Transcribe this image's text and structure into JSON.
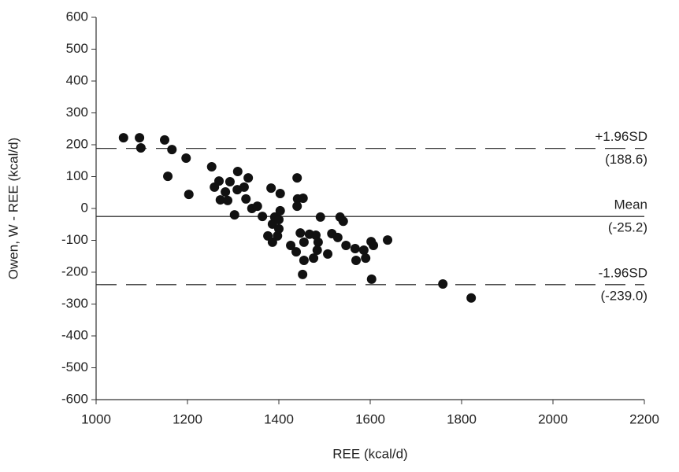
{
  "chart_data": {
    "type": "scatter",
    "x_label": "REE (kcal/d)",
    "y_label": "Owen, W - REE (kcal/d)",
    "xlim": [
      1000,
      2200
    ],
    "xticks": [
      1000,
      1200,
      1400,
      1600,
      1800,
      2000,
      2200
    ],
    "ylim": [
      -600,
      600
    ],
    "yticks": [
      600,
      500,
      400,
      300,
      200,
      100,
      0,
      -100,
      -200,
      -300,
      -400,
      -500,
      -600
    ],
    "series": [
      {
        "color": "#111111",
        "x": [
          1060,
          1095,
          1098,
          1150,
          1166,
          1157,
          1197,
          1203,
          1253,
          1259,
          1269,
          1272,
          1283,
          1288,
          1293,
          1303,
          1310,
          1309,
          1324,
          1328,
          1333,
          1341,
          1353,
          1364,
          1376,
          1383,
          1386,
          1391,
          1397,
          1400,
          1403,
          1403,
          1400,
          1386,
          1426,
          1438,
          1440,
          1441,
          1440,
          1453,
          1447,
          1452,
          1455,
          1455,
          1467,
          1476,
          1481,
          1486,
          1491,
          1484,
          1507,
          1516,
          1529,
          1534,
          1541,
          1547,
          1567,
          1569,
          1586,
          1590,
          1602,
          1603,
          1607,
          1638,
          1759,
          1821
        ],
        "values": [
          222,
          222,
          190,
          215,
          185,
          101,
          158,
          44,
          131,
          67,
          86,
          27,
          52,
          25,
          84,
          -20,
          116,
          59,
          67,
          30,
          96,
          0,
          7,
          -25,
          -86,
          64,
          -49,
          -27,
          -86,
          -64,
          47,
          -7,
          -35,
          -106,
          -116,
          -136,
          96,
          30,
          7,
          32,
          -77,
          -207,
          -163,
          -106,
          -81,
          -156,
          -84,
          -106,
          -27,
          -131,
          -143,
          -79,
          -91,
          -27,
          -40,
          -116,
          -126,
          -163,
          -131,
          -156,
          -104,
          -222,
          -116,
          -99,
          -237,
          -281
        ]
      }
    ],
    "reference_lines": [
      {
        "name": "+1.96SD",
        "value": 188.6,
        "value_label": "(188.6)",
        "style": "dashed"
      },
      {
        "name": "Mean",
        "value": -25.2,
        "value_label": "(-25.2)",
        "style": "solid"
      },
      {
        "name": "-1.96SD",
        "value": -239.0,
        "value_label": "(-239.0)",
        "style": "dashed"
      }
    ]
  }
}
